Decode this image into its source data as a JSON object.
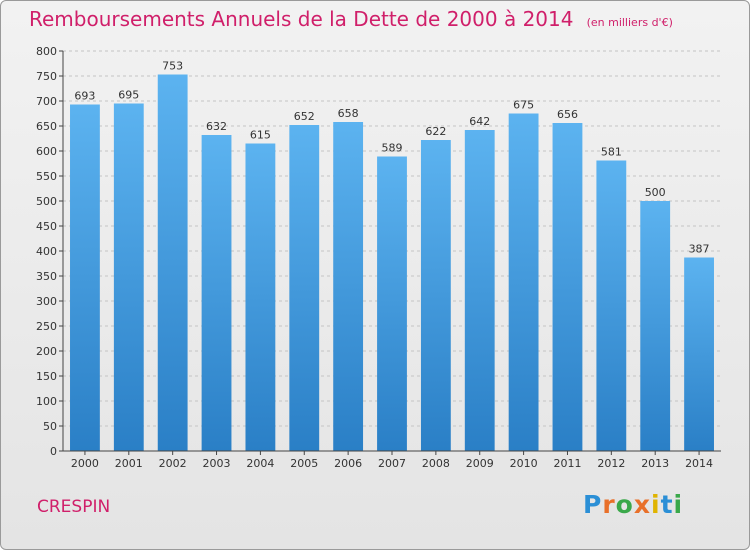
{
  "header": {
    "title": "Remboursements Annuels de la Dette de 2000 à 2014",
    "subtitle": "(en milliers d'€)"
  },
  "footer": {
    "commune": "CRESPIN",
    "logo_letters": [
      "P",
      "r",
      "o",
      "x",
      "i",
      "t",
      "i"
    ],
    "logo_colors": [
      "#2b8fd6",
      "#e8702a",
      "#3aa84a",
      "#e8702a",
      "#e0b400",
      "#2b8fd6",
      "#3aa84a"
    ]
  },
  "colors": {
    "title": "#d01f6a",
    "bar_top": "#5cb3f0",
    "bar_bottom": "#2a7fc6",
    "grid": "#c4c4c4",
    "axis": "#444444"
  },
  "chart_data": {
    "type": "bar",
    "title": "Remboursements Annuels de la Dette de 2000 à 2014",
    "subtitle": "(en milliers d'€)",
    "xlabel": "",
    "ylabel": "",
    "categories": [
      "2000",
      "2001",
      "2002",
      "2003",
      "2004",
      "2005",
      "2006",
      "2007",
      "2008",
      "2009",
      "2010",
      "2011",
      "2012",
      "2013",
      "2014"
    ],
    "values": [
      693,
      695,
      753,
      632,
      615,
      652,
      658,
      589,
      622,
      642,
      675,
      656,
      581,
      500,
      387
    ],
    "ylim": [
      0,
      800
    ],
    "yticks": [
      0,
      50,
      100,
      150,
      200,
      250,
      300,
      350,
      400,
      450,
      500,
      550,
      600,
      650,
      700,
      750,
      800
    ],
    "grid": "horizontal dashed"
  }
}
